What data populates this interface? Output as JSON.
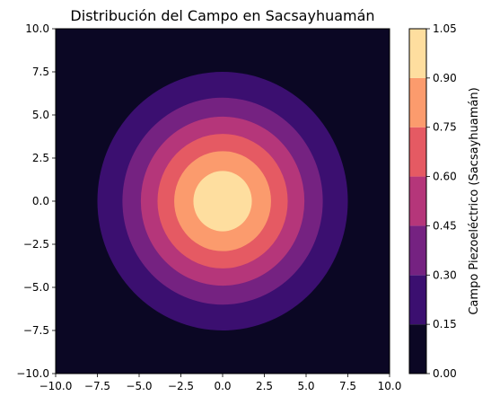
{
  "chart_data": {
    "type": "contourf",
    "title": "Distribución del Campo en Sacsayhuamán",
    "xlabel": "",
    "ylabel": "",
    "xlim": [
      -10,
      10
    ],
    "ylim": [
      -10,
      10
    ],
    "x_ticks": [
      "−10.0",
      "−7.5",
      "−5.0",
      "−2.5",
      "0.0",
      "2.5",
      "5.0",
      "7.5",
      "10.0"
    ],
    "y_ticks": [
      "−10.0",
      "−7.5",
      "−5.0",
      "−2.5",
      "0.0",
      "2.5",
      "5.0",
      "7.5",
      "10.0"
    ],
    "grid": false,
    "field": "circular radial decay centred at (0, 0)",
    "contour_levels": [
      0.0,
      0.15,
      0.3,
      0.45,
      0.6,
      0.75,
      0.9,
      1.05
    ],
    "level_boundary_radii": [
      {
        "level": 0.15,
        "radius": 7.5
      },
      {
        "level": 0.3,
        "radius": 6.0
      },
      {
        "level": 0.45,
        "radius": 4.9
      },
      {
        "level": 0.6,
        "radius": 3.9
      },
      {
        "level": 0.75,
        "radius": 2.9
      },
      {
        "level": 0.9,
        "radius": 1.75
      }
    ],
    "colormap": "magma",
    "band_colors": [
      "#0b0724",
      "#3b0f70",
      "#752281",
      "#b5367a",
      "#e55a63",
      "#fb9b6d",
      "#fede9f"
    ],
    "colorbar": {
      "label": "Campo Piezoeléctrico (Sacsayhuamán)",
      "ticks": [
        "0.00",
        "0.15",
        "0.30",
        "0.45",
        "0.60",
        "0.75",
        "0.90",
        "1.05"
      ]
    }
  }
}
